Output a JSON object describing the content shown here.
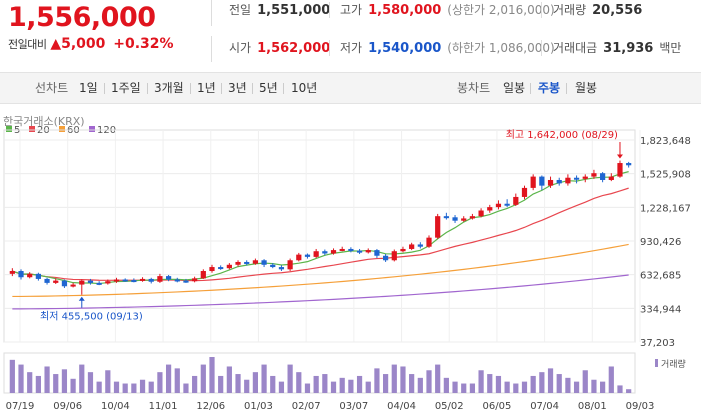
{
  "header": {
    "price": "1,556,000",
    "diff_label": "전일대비",
    "diff_arrow": "▲",
    "diff_value": "5,000",
    "diff_rate": "+0.32%",
    "prev_label": "전일",
    "prev_value": "1,551,000",
    "high_label": "고가",
    "high_value": "1,580,000",
    "upper_limit": "(상한가 2,016,000)",
    "volume_label": "거래량",
    "volume_value": "20,556",
    "open_label": "시가",
    "open_value": "1,562,000",
    "low_label": "저가",
    "low_value": "1,540,000",
    "lower_limit": "(하한가 1,086,000)",
    "amount_label": "거래대금",
    "amount_value": "31,936",
    "amount_unit": "백만"
  },
  "tabs": {
    "line_header": "선차트",
    "line_tabs": [
      "1일",
      "1주일",
      "3개월",
      "1년",
      "3년",
      "5년",
      "10년"
    ],
    "candle_header": "봉차트",
    "candle_tabs": [
      "일봉",
      "주봉",
      "월봉"
    ],
    "active": "주봉"
  },
  "chart_data": {
    "type": "candlestick",
    "source_label": "한국거래소(KRX)",
    "legend": [
      {
        "name": "5",
        "color": "#5bb54a"
      },
      {
        "name": "20",
        "color": "#e8474f"
      },
      {
        "name": "60",
        "color": "#f5a03a"
      },
      {
        "name": "120",
        "color": "#a166cf"
      }
    ],
    "y_ticks": [
      1823648,
      1525908,
      1228167,
      930426,
      632685,
      334944,
      37203
    ],
    "y_tick_labels": [
      "1,823,648",
      "1,525,908",
      "1,228,167",
      "930,426",
      "632,685",
      "334,944",
      "37,203"
    ],
    "ylim": [
      37203,
      1823648
    ],
    "x_tick_labels": [
      "07/19",
      "09/06",
      "10/04",
      "11/01",
      "12/06",
      "01/03",
      "02/07",
      "03/07",
      "04/04",
      "05/02",
      "06/05",
      "07/04",
      "08/01",
      "09/03"
    ],
    "annotations": {
      "high": "최고 1,642,000 (08/29)",
      "low": "최저 455,500 (09/13)"
    },
    "up_color": "#e0141e",
    "down_color": "#1f66d1",
    "candles": [
      {
        "o": 640000,
        "c": 665000,
        "h": 690000,
        "l": 620000
      },
      {
        "o": 665000,
        "c": 610000,
        "h": 680000,
        "l": 590000
      },
      {
        "o": 610000,
        "c": 640000,
        "h": 655000,
        "l": 600000
      },
      {
        "o": 640000,
        "c": 595000,
        "h": 650000,
        "l": 580000
      },
      {
        "o": 595000,
        "c": 560000,
        "h": 605000,
        "l": 545000
      },
      {
        "o": 560000,
        "c": 580000,
        "h": 600000,
        "l": 550000
      },
      {
        "o": 580000,
        "c": 530000,
        "h": 590000,
        "l": 515000
      },
      {
        "o": 530000,
        "c": 545000,
        "h": 560000,
        "l": 520000
      },
      {
        "o": 545000,
        "c": 580000,
        "h": 590000,
        "l": 455500
      },
      {
        "o": 580000,
        "c": 560000,
        "h": 595000,
        "l": 545000
      },
      {
        "o": 560000,
        "c": 555000,
        "h": 575000,
        "l": 540000
      },
      {
        "o": 555000,
        "c": 575000,
        "h": 590000,
        "l": 545000
      },
      {
        "o": 575000,
        "c": 590000,
        "h": 605000,
        "l": 560000
      },
      {
        "o": 590000,
        "c": 585000,
        "h": 600000,
        "l": 570000
      },
      {
        "o": 585000,
        "c": 580000,
        "h": 600000,
        "l": 565000
      },
      {
        "o": 580000,
        "c": 595000,
        "h": 610000,
        "l": 570000
      },
      {
        "o": 595000,
        "c": 570000,
        "h": 605000,
        "l": 555000
      },
      {
        "o": 570000,
        "c": 620000,
        "h": 640000,
        "l": 560000
      },
      {
        "o": 620000,
        "c": 590000,
        "h": 630000,
        "l": 575000
      },
      {
        "o": 590000,
        "c": 580000,
        "h": 605000,
        "l": 565000
      },
      {
        "o": 580000,
        "c": 575000,
        "h": 595000,
        "l": 560000
      },
      {
        "o": 575000,
        "c": 600000,
        "h": 615000,
        "l": 565000
      },
      {
        "o": 600000,
        "c": 665000,
        "h": 680000,
        "l": 595000
      },
      {
        "o": 665000,
        "c": 700000,
        "h": 720000,
        "l": 650000
      },
      {
        "o": 700000,
        "c": 690000,
        "h": 715000,
        "l": 675000
      },
      {
        "o": 690000,
        "c": 720000,
        "h": 735000,
        "l": 680000
      },
      {
        "o": 720000,
        "c": 745000,
        "h": 760000,
        "l": 705000
      },
      {
        "o": 745000,
        "c": 730000,
        "h": 760000,
        "l": 715000
      },
      {
        "o": 730000,
        "c": 760000,
        "h": 775000,
        "l": 720000
      },
      {
        "o": 760000,
        "c": 720000,
        "h": 770000,
        "l": 700000
      },
      {
        "o": 720000,
        "c": 700000,
        "h": 735000,
        "l": 690000
      },
      {
        "o": 700000,
        "c": 680000,
        "h": 715000,
        "l": 665000
      },
      {
        "o": 680000,
        "c": 760000,
        "h": 775000,
        "l": 665000
      },
      {
        "o": 760000,
        "c": 810000,
        "h": 825000,
        "l": 750000
      },
      {
        "o": 810000,
        "c": 790000,
        "h": 820000,
        "l": 775000
      },
      {
        "o": 790000,
        "c": 840000,
        "h": 860000,
        "l": 780000
      },
      {
        "o": 840000,
        "c": 820000,
        "h": 855000,
        "l": 805000
      },
      {
        "o": 820000,
        "c": 850000,
        "h": 865000,
        "l": 810000
      },
      {
        "o": 850000,
        "c": 860000,
        "h": 880000,
        "l": 840000
      },
      {
        "o": 860000,
        "c": 845000,
        "h": 875000,
        "l": 830000
      },
      {
        "o": 845000,
        "c": 830000,
        "h": 860000,
        "l": 815000
      },
      {
        "o": 830000,
        "c": 850000,
        "h": 865000,
        "l": 820000
      },
      {
        "o": 850000,
        "c": 800000,
        "h": 860000,
        "l": 780000
      },
      {
        "o": 800000,
        "c": 760000,
        "h": 815000,
        "l": 745000
      },
      {
        "o": 760000,
        "c": 840000,
        "h": 855000,
        "l": 750000
      },
      {
        "o": 840000,
        "c": 860000,
        "h": 880000,
        "l": 830000
      },
      {
        "o": 860000,
        "c": 900000,
        "h": 915000,
        "l": 850000
      },
      {
        "o": 900000,
        "c": 880000,
        "h": 920000,
        "l": 865000
      },
      {
        "o": 880000,
        "c": 960000,
        "h": 980000,
        "l": 870000
      },
      {
        "o": 960000,
        "c": 1150000,
        "h": 1170000,
        "l": 950000
      },
      {
        "o": 1150000,
        "c": 1140000,
        "h": 1180000,
        "l": 1120000
      },
      {
        "o": 1140000,
        "c": 1110000,
        "h": 1160000,
        "l": 1090000
      },
      {
        "o": 1110000,
        "c": 1130000,
        "h": 1150000,
        "l": 1100000
      },
      {
        "o": 1130000,
        "c": 1150000,
        "h": 1170000,
        "l": 1120000
      },
      {
        "o": 1150000,
        "c": 1200000,
        "h": 1220000,
        "l": 1140000
      },
      {
        "o": 1200000,
        "c": 1230000,
        "h": 1250000,
        "l": 1180000
      },
      {
        "o": 1230000,
        "c": 1260000,
        "h": 1290000,
        "l": 1210000
      },
      {
        "o": 1260000,
        "c": 1250000,
        "h": 1300000,
        "l": 1230000
      },
      {
        "o": 1250000,
        "c": 1320000,
        "h": 1350000,
        "l": 1240000
      },
      {
        "o": 1320000,
        "c": 1400000,
        "h": 1420000,
        "l": 1300000
      },
      {
        "o": 1400000,
        "c": 1500000,
        "h": 1520000,
        "l": 1380000
      },
      {
        "o": 1500000,
        "c": 1420000,
        "h": 1510000,
        "l": 1380000
      },
      {
        "o": 1420000,
        "c": 1470000,
        "h": 1500000,
        "l": 1400000
      },
      {
        "o": 1470000,
        "c": 1440000,
        "h": 1490000,
        "l": 1420000
      },
      {
        "o": 1440000,
        "c": 1490000,
        "h": 1520000,
        "l": 1420000
      },
      {
        "o": 1490000,
        "c": 1480000,
        "h": 1510000,
        "l": 1440000
      },
      {
        "o": 1480000,
        "c": 1500000,
        "h": 1520000,
        "l": 1450000
      },
      {
        "o": 1500000,
        "c": 1530000,
        "h": 1560000,
        "l": 1480000
      },
      {
        "o": 1530000,
        "c": 1470000,
        "h": 1540000,
        "l": 1450000
      },
      {
        "o": 1470000,
        "c": 1500000,
        "h": 1530000,
        "l": 1460000
      },
      {
        "o": 1500000,
        "c": 1620000,
        "h": 1642000,
        "l": 1490000
      },
      {
        "o": 1620000,
        "c": 1600000,
        "h": 1630000,
        "l": 1580000
      }
    ],
    "volumes": [
      35,
      30,
      22,
      18,
      28,
      20,
      25,
      15,
      30,
      22,
      12,
      24,
      12,
      10,
      10,
      14,
      12,
      22,
      30,
      26,
      10,
      18,
      30,
      38,
      18,
      28,
      20,
      14,
      22,
      30,
      18,
      12,
      30,
      22,
      10,
      18,
      20,
      12,
      16,
      14,
      18,
      12,
      26,
      20,
      30,
      28,
      20,
      16,
      24,
      30,
      16,
      12,
      10,
      10,
      24,
      20,
      18,
      12,
      10,
      12,
      18,
      22,
      26,
      20,
      16,
      12,
      24,
      14,
      12,
      28,
      8,
      4
    ],
    "volume_label": "거래량"
  }
}
